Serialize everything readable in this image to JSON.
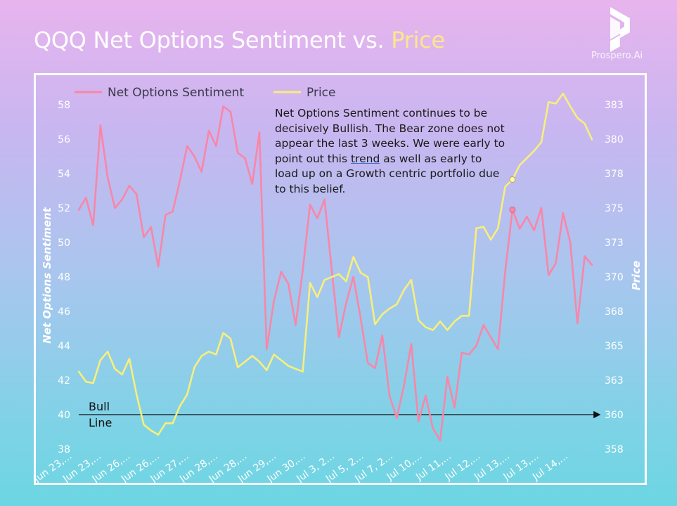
{
  "header": {
    "title_main": "QQQ Net Options Sentiment",
    "title_vs": "vs.",
    "title_price": "Price",
    "logo_text": "Prospero.Ai"
  },
  "annotation": {
    "before": "Net Options Sentiment continues to be decisively Bullish. The Bear zone does not appear the last 3 weeks. We were early to point out this ",
    "underlined": "trend",
    "after": " as well as early to load up on a Growth centric portfolio due to this belief."
  },
  "bull_line": {
    "label_1": "Bull",
    "label_2": "Line",
    "value": 40
  },
  "colors": {
    "sentiment": "#f986a8",
    "price": "#f7ef7c",
    "axis_text": "#ffffff",
    "frame": "#ffffff"
  },
  "chart_data": {
    "type": "line",
    "title": "QQQ Net Options Sentiment vs. Price",
    "legend_position": "top-left",
    "y_left": {
      "label": "Net Options Sentiment",
      "ylim": [
        37,
        59
      ],
      "ticks": [
        38,
        40,
        42,
        44,
        46,
        48,
        50,
        52,
        54,
        56,
        58
      ]
    },
    "y_right": {
      "label": "Price",
      "ylim": [
        357,
        384
      ],
      "ticks": [
        "358",
        "360",
        "363",
        "365",
        "368",
        "370",
        "373",
        "375",
        "378",
        "380",
        "383"
      ]
    },
    "x_tick_labels": [
      "Jun 23,...",
      "Jun 23,...",
      "Jun 26,...",
      "Jun 26,...",
      "Jun 27,...",
      "Jun 28,...",
      "Jun 28,...",
      "Jun 29,...",
      "Jun 30,...",
      "Jul 3, 2...",
      "Jul 5, 2...",
      "Jul 7, 2...",
      "Jul 10,...",
      "Jul 11,...",
      "Jul 12,...",
      "Jul 13,...",
      "Jul 13,...",
      "Jul 14,..."
    ],
    "series": [
      {
        "name": "Net Options Sentiment",
        "axis": "left",
        "values": [
          51.9,
          52.6,
          51.0,
          56.8,
          53.8,
          52.0,
          52.5,
          53.3,
          52.8,
          50.3,
          50.9,
          48.6,
          51.6,
          51.8,
          53.6,
          55.6,
          55.0,
          54.1,
          56.5,
          55.6,
          57.9,
          57.6,
          55.2,
          54.9,
          53.4,
          56.4,
          43.8,
          46.6,
          48.3,
          47.6,
          45.2,
          48.4,
          52.2,
          51.4,
          52.5,
          48.4,
          44.5,
          46.5,
          48.0,
          45.6,
          43.0,
          42.7,
          44.6,
          41.1,
          39.8,
          41.7,
          44.1,
          39.6,
          41.1,
          39.2,
          38.5,
          42.2,
          40.4,
          43.6,
          43.5,
          44.0,
          45.2,
          44.5,
          43.8,
          48.3,
          51.9,
          50.8,
          51.5,
          50.7,
          52.0,
          48.1,
          48.8,
          51.7,
          50.0,
          45.3,
          49.2,
          48.7
        ]
      },
      {
        "name": "Price",
        "axis": "right",
        "values": [
          363.4,
          362.7,
          362.6,
          364.2,
          364.8,
          363.6,
          363.2,
          364.3,
          361.8,
          359.7,
          359.3,
          359.0,
          359.8,
          359.8,
          361.0,
          361.8,
          363.7,
          364.5,
          364.8,
          364.6,
          366.1,
          365.7,
          363.7,
          364.1,
          364.5,
          364.1,
          363.5,
          364.6,
          364.2,
          363.8,
          363.6,
          363.4,
          369.6,
          368.6,
          369.8,
          370.0,
          370.2,
          369.7,
          371.4,
          370.3,
          370.0,
          366.7,
          367.4,
          367.8,
          368.1,
          369.1,
          369.8,
          367.0,
          366.5,
          366.3,
          366.9,
          366.3,
          366.9,
          367.3,
          367.3,
          373.4,
          373.5,
          372.6,
          373.4,
          376.3,
          376.8,
          377.8,
          378.3,
          378.8,
          379.4,
          382.2,
          382.1,
          382.8,
          381.9,
          381.1,
          380.7,
          379.6
        ]
      }
    ]
  }
}
